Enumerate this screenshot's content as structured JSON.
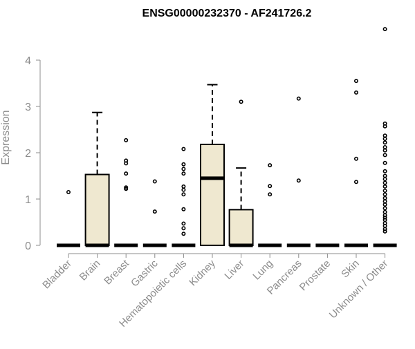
{
  "chart_data": {
    "type": "boxplot",
    "title": "ENSG00000232370 - AF241726.2",
    "xlabel": "",
    "ylabel": "Expression",
    "ylim": [
      0,
      4.75
    ],
    "yticks": [
      0,
      1,
      2,
      3,
      4
    ],
    "grid": false,
    "legend": "none",
    "colors": {
      "box_fill": "#efe8d0",
      "box_stroke": "#000000",
      "axis_text": "#8c8c8c",
      "outlier_stroke": "#000000"
    },
    "categories": [
      "Bladder",
      "Brain",
      "Breast",
      "Gastric",
      "Hematopoietic cells",
      "Kidney",
      "Liver",
      "Lung",
      "Pancreas",
      "Prostate",
      "Skin",
      "Unknown / Other"
    ],
    "boxes": [
      {
        "q1": 0,
        "median": 0,
        "q3": 0,
        "whisker_low": 0,
        "whisker_high": 0,
        "outliers": [
          1.15
        ]
      },
      {
        "q1": 0,
        "median": 0,
        "q3": 1.53,
        "whisker_low": 0,
        "whisker_high": 2.87,
        "outliers": []
      },
      {
        "q1": 0,
        "median": 0,
        "q3": 0,
        "whisker_low": 0,
        "whisker_high": 0,
        "outliers": [
          1.22,
          1.25,
          1.55,
          1.77,
          1.83,
          2.27
        ]
      },
      {
        "q1": 0,
        "median": 0,
        "q3": 0,
        "whisker_low": 0,
        "whisker_high": 0,
        "outliers": [
          0.73,
          1.38
        ]
      },
      {
        "q1": 0,
        "median": 0,
        "q3": 0,
        "whisker_low": 0,
        "whisker_high": 0,
        "outliers": [
          0.25,
          0.37,
          0.47,
          0.78,
          1.1,
          1.2,
          1.27,
          1.55,
          1.65,
          1.75,
          2.08
        ]
      },
      {
        "q1": 0,
        "median": 1.45,
        "q3": 2.18,
        "whisker_low": 0,
        "whisker_high": 3.47,
        "outliers": []
      },
      {
        "q1": 0,
        "median": 0,
        "q3": 0.77,
        "whisker_low": 0,
        "whisker_high": 1.67,
        "outliers": [
          3.1
        ]
      },
      {
        "q1": 0,
        "median": 0,
        "q3": 0,
        "whisker_low": 0,
        "whisker_high": 0,
        "outliers": [
          1.1,
          1.28,
          1.73
        ]
      },
      {
        "q1": 0,
        "median": 0,
        "q3": 0,
        "whisker_low": 0,
        "whisker_high": 0,
        "outliers": [
          1.4,
          3.17
        ]
      },
      {
        "q1": 0,
        "median": 0,
        "q3": 0,
        "whisker_low": 0,
        "whisker_high": 0,
        "outliers": []
      },
      {
        "q1": 0,
        "median": 0,
        "q3": 0,
        "whisker_low": 0,
        "whisker_high": 0,
        "outliers": [
          1.37,
          1.87,
          3.3,
          3.55
        ]
      },
      {
        "q1": 0,
        "median": 0,
        "q3": 0,
        "whisker_low": 0,
        "whisker_high": 0,
        "outliers": [
          0.3,
          0.35,
          0.42,
          0.48,
          0.55,
          0.6,
          0.65,
          0.72,
          0.8,
          0.88,
          0.95,
          1.02,
          1.1,
          1.18,
          1.27,
          1.35,
          1.43,
          1.5,
          1.6,
          1.78,
          1.95,
          2.05,
          2.12,
          2.22,
          2.3,
          2.37,
          2.57,
          2.63,
          4.67
        ]
      }
    ]
  }
}
